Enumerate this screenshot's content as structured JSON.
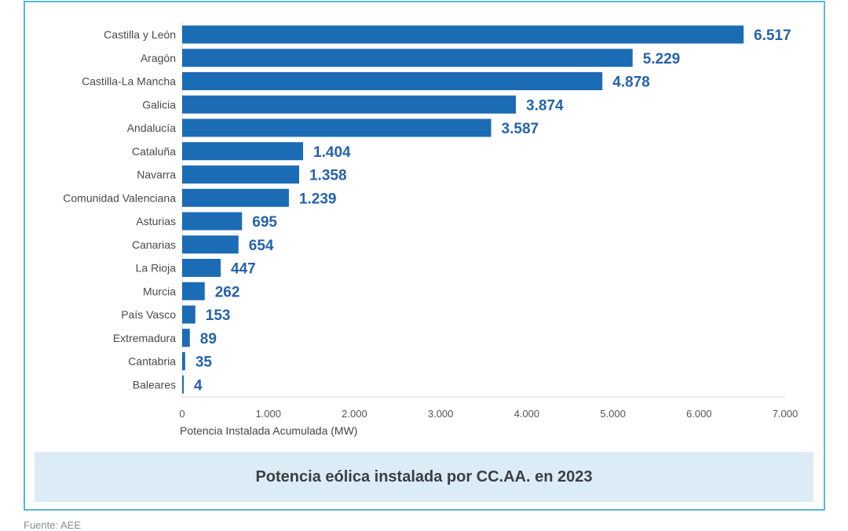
{
  "chart_data": {
    "type": "bar",
    "orientation": "horizontal",
    "categories": [
      "Castilla y León",
      "Aragón",
      "Castilla-La Mancha",
      "Galicia",
      "Andalucía",
      "Cataluña",
      "Navarra",
      "Comunidad Valenciana",
      "Asturias",
      "Canarias",
      "La Rioja",
      "Murcia",
      "País Vasco",
      "Extremadura",
      "Cantabria",
      "Baleares"
    ],
    "values": [
      6517,
      5229,
      4878,
      3874,
      3587,
      1404,
      1358,
      1239,
      695,
      654,
      447,
      262,
      153,
      89,
      35,
      4
    ],
    "value_labels": [
      "6.517",
      "5.229",
      "4.878",
      "3.874",
      "3.587",
      "1.404",
      "1.358",
      "1.239",
      "695",
      "654",
      "447",
      "262",
      "153",
      "89",
      "35",
      "4"
    ],
    "xlim": [
      0,
      7000
    ],
    "xticks": [
      0,
      1000,
      2000,
      3000,
      4000,
      5000,
      6000,
      7000
    ],
    "xtick_labels": [
      "0",
      "1.000",
      "2.000",
      "3.000",
      "4.000",
      "5.000",
      "6.000",
      "7.000"
    ],
    "xlabel": "Potencia  Instalada  Acumulada (MW)",
    "ylabel": "",
    "title": "Potencia eólica instalada por CC.AA. en 2023",
    "grid": false,
    "bar_color": "#1b6cb4",
    "label_color": "#2563ab"
  },
  "source": "Fuente: AEE"
}
